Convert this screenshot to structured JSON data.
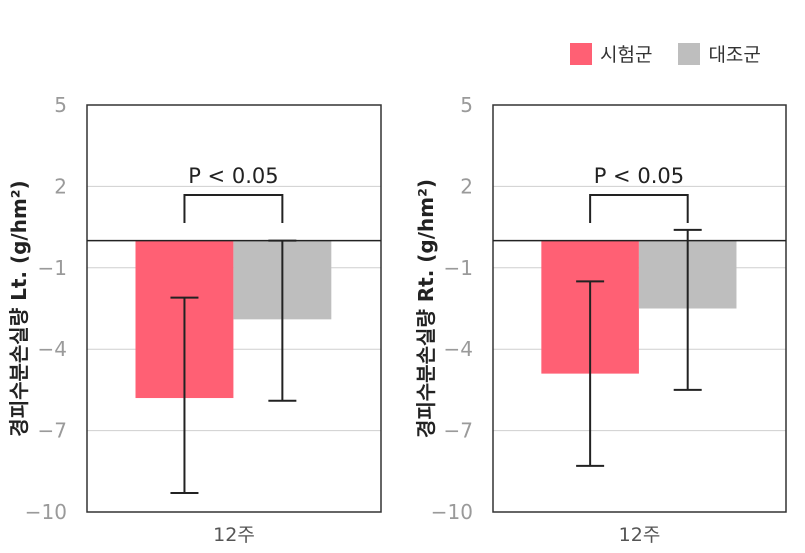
{
  "legend": {
    "items": [
      {
        "label": "시험군",
        "color": "#FF6074"
      },
      {
        "label": "대조군",
        "color": "#BEBEBE"
      }
    ]
  },
  "chart_data": [
    {
      "type": "bar",
      "ylabel": "경피수분손실량 Lt. (g/hm²)",
      "categories": [
        "12주"
      ],
      "ylim": [
        -10,
        5
      ],
      "yticks": [
        5,
        2,
        -1,
        -4,
        -7,
        -10
      ],
      "baseline": 0,
      "grid": true,
      "significance": "P < 0.05",
      "series": [
        {
          "name": "시험군",
          "color": "#FF6074",
          "values": [
            -5.8
          ],
          "error_low": [
            -9.3
          ],
          "error_high": [
            -2.1
          ]
        },
        {
          "name": "대조군",
          "color": "#BEBEBE",
          "values": [
            -2.9
          ],
          "error_low": [
            -5.9
          ],
          "error_high": [
            0.0
          ]
        }
      ]
    },
    {
      "type": "bar",
      "ylabel": "경피수분손실량 Rt. (g/hm²)",
      "categories": [
        "12주"
      ],
      "ylim": [
        -10,
        5
      ],
      "yticks": [
        5,
        2,
        -1,
        -4,
        -7,
        -10
      ],
      "baseline": 0,
      "grid": true,
      "significance": "P < 0.05",
      "series": [
        {
          "name": "시험군",
          "color": "#FF6074",
          "values": [
            -4.9
          ],
          "error_low": [
            -8.3
          ],
          "error_high": [
            -1.5
          ]
        },
        {
          "name": "대조군",
          "color": "#BEBEBE",
          "values": [
            -2.5
          ],
          "error_low": [
            -5.5
          ],
          "error_high": [
            0.4
          ]
        }
      ]
    }
  ]
}
